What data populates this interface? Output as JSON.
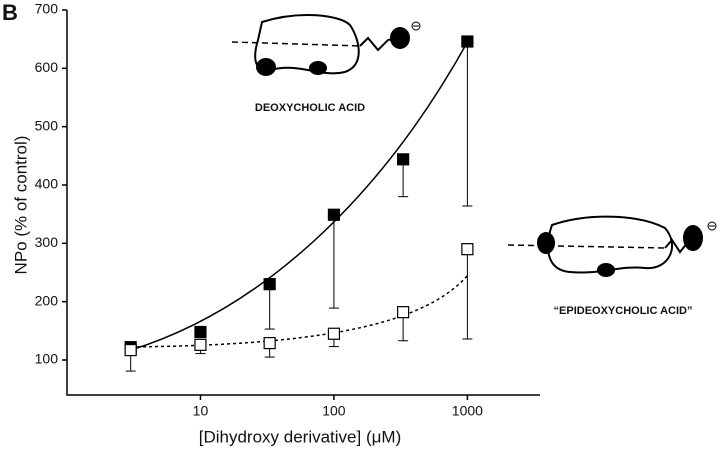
{
  "chart_data": {
    "type": "scatter",
    "panel_label": "B",
    "xlabel": "[Dihydroxy derivative] (μM)",
    "ylabel": "NPo (% of control)",
    "annotations": [
      "DEOXYCHOLIC ACID",
      "“EPIDEOXYCHOLIC ACID”"
    ],
    "x": [
      3,
      10,
      33,
      100,
      330,
      1000
    ],
    "series": [
      {
        "color": "#000000",
        "fill": "#000000",
        "values": [
          122,
          148,
          230,
          349,
          444,
          646
        ],
        "errors": [
          null,
          null,
          77,
          160,
          64,
          282
        ]
      },
      {
        "color": "#000000",
        "fill": "#ffffff",
        "values": [
          117,
          126,
          129,
          145,
          182,
          290
        ],
        "errors": [
          36,
          15,
          24,
          22,
          49,
          154
        ]
      }
    ],
    "xscale": "log",
    "xlim": [
      1,
      3500
    ],
    "xticks": [
      10,
      100,
      1000
    ],
    "ylim": [
      40,
      700
    ],
    "yticks": [
      100,
      200,
      300,
      400,
      500,
      600,
      700
    ]
  }
}
